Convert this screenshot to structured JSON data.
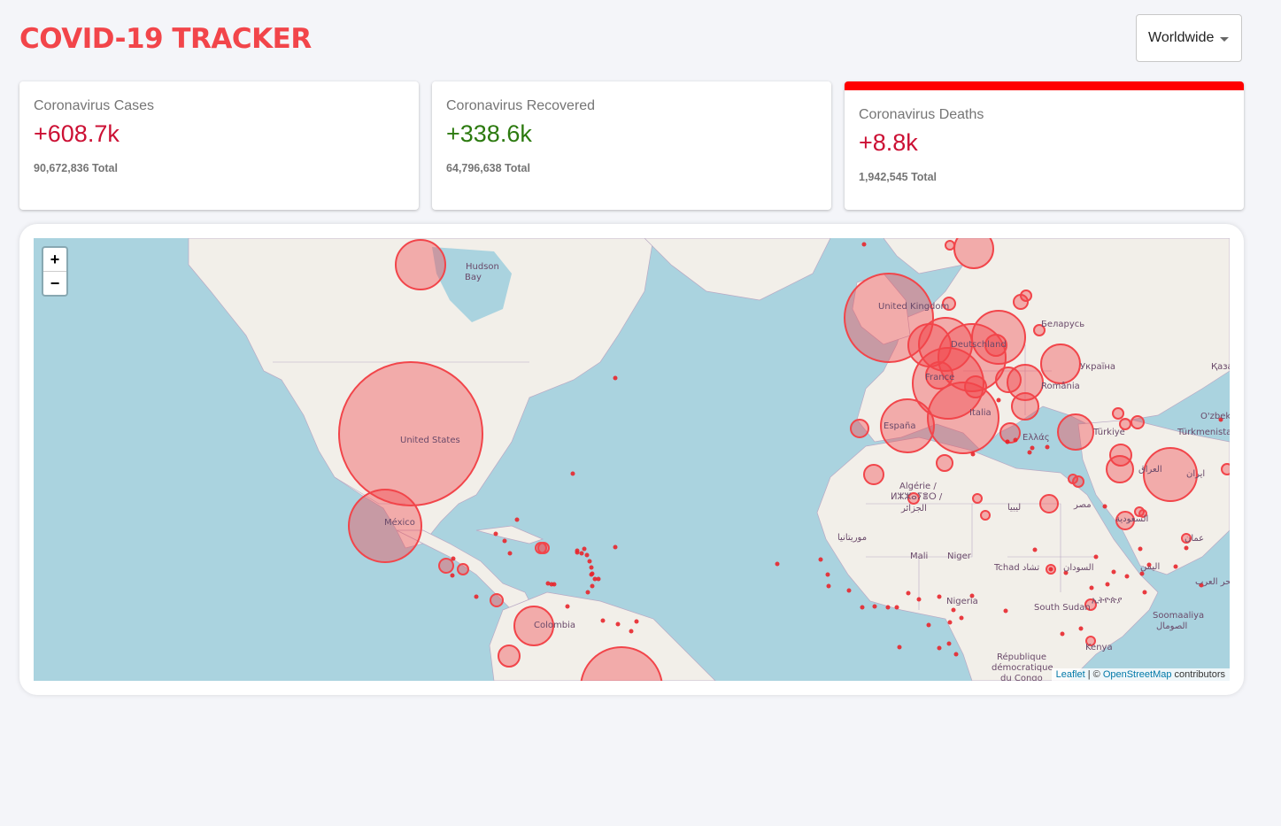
{
  "app": {
    "title": "COVID-19 TRACKER"
  },
  "country_select": {
    "selected": "Worldwide"
  },
  "cards": [
    {
      "title": "Coronavirus Cases",
      "value": "+608.7k",
      "total": "90,672,836 Total",
      "color": "#cc1034"
    },
    {
      "title": "Coronavirus Recovered",
      "value": "+338.6k",
      "total": "64,796,638 Total",
      "color": "#2c7a0f"
    },
    {
      "title": "Coronavirus Deaths",
      "value": "+8.8k",
      "total": "1,942,545 Total",
      "color": "#cc1034"
    }
  ],
  "map": {
    "zoom_in": "+",
    "zoom_out": "−",
    "attribution": {
      "leaflet": "Leaflet",
      "sep": " | © ",
      "osm": "OpenStreetMap",
      "suffix": " contributors"
    },
    "labels": {
      "hudson": "Hudson",
      "bay": "Bay",
      "us": "United States",
      "mexico": "México",
      "colombia": "Colombia",
      "uk": "United Kingdom",
      "germany": "Deutschland",
      "france": "France",
      "spain": "España",
      "italy": "Italia",
      "romania": "România",
      "ukraine": "Україна",
      "belarus": "Беларусь",
      "turkey": "Türkiye",
      "greece": "Ελλάς",
      "iran": "ایران",
      "iraq": "العراق",
      "egypt": "مصر",
      "libya": "ليبيا",
      "algeria1": "Algérie /",
      "algeria2": "ⵍⵣⵣⴰⵢⴻⵔ /",
      "algeria3": "الجزائر",
      "mauritania": "موريتانيا",
      "mali": "Mali",
      "niger": "Niger",
      "chad": "Tchad تشاد",
      "sudan": "السودان",
      "nigeria": "Nigeria",
      "south_sudan": "South Sudan",
      "ethiopia": "ኢትዮጵያ",
      "somalia1": "Soomaaliya",
      "somalia2": "الصومال",
      "kenya": "Kenya",
      "drc1": "République",
      "drc2": "démocratique",
      "drc3": "du Congo",
      "saudi": "السعودية",
      "yemen": "اليمن",
      "oman": "عمان",
      "arabian_sea": "بحر العرب",
      "kazakh": "Қаза",
      "uzbek": "O'zbekis",
      "turkmen": "Türkmenistan"
    },
    "bubble_color": "#f2454a"
  }
}
